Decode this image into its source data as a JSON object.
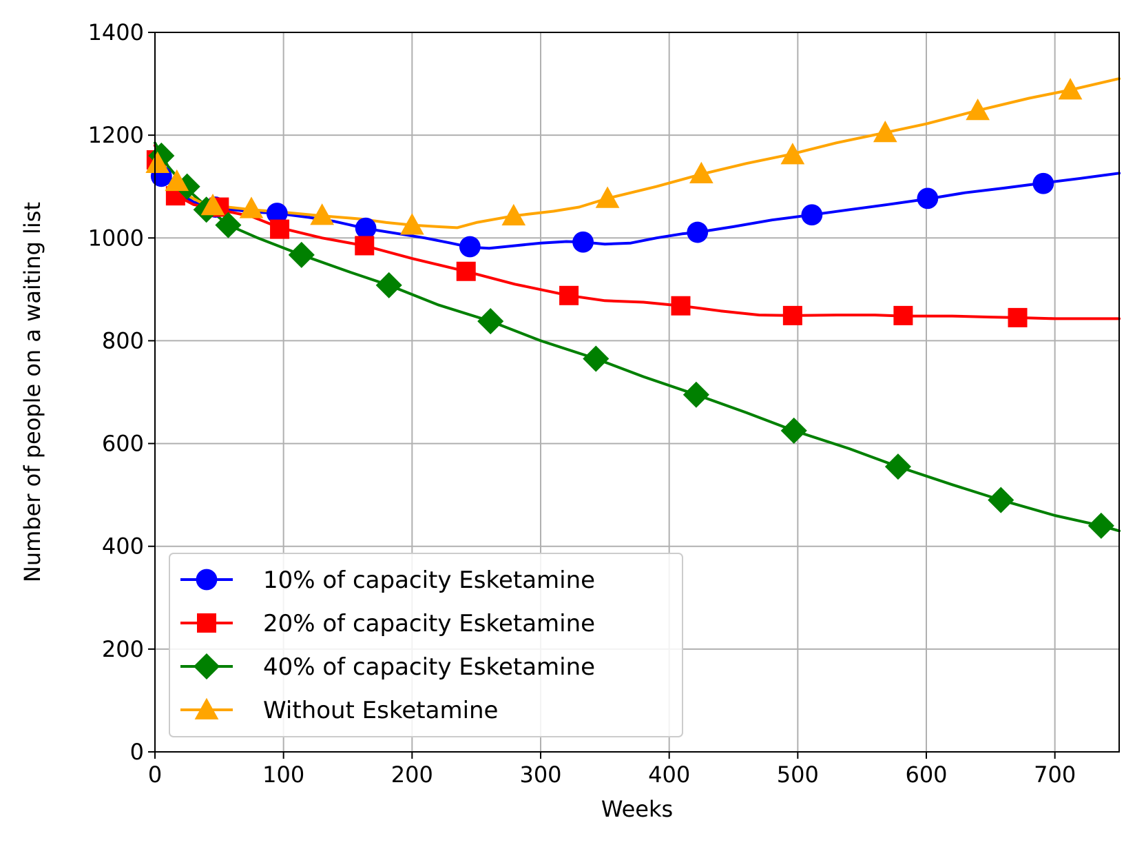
{
  "chart_data": {
    "type": "line",
    "title": "",
    "xlabel": "Weeks",
    "ylabel": "Number of people on a waiting list",
    "xlim": [
      0,
      750
    ],
    "ylim": [
      0,
      1400
    ],
    "x_ticks": [
      0,
      100,
      200,
      300,
      400,
      500,
      600,
      700
    ],
    "y_ticks": [
      0,
      200,
      400,
      600,
      800,
      1000,
      1200,
      1400
    ],
    "grid": true,
    "legend_position": "lower-left",
    "series": [
      {
        "name": "10% of capacity Esketamine",
        "color": "#0000ff",
        "marker": "circle",
        "line": [
          [
            0,
            1180
          ],
          [
            10,
            1125
          ],
          [
            20,
            1085
          ],
          [
            30,
            1070
          ],
          [
            40,
            1062
          ],
          [
            60,
            1055
          ],
          [
            80,
            1050
          ],
          [
            95,
            1048
          ],
          [
            120,
            1040
          ],
          [
            140,
            1032
          ],
          [
            165,
            1018
          ],
          [
            190,
            1008
          ],
          [
            210,
            1000
          ],
          [
            230,
            990
          ],
          [
            245,
            982
          ],
          [
            260,
            980
          ],
          [
            280,
            985
          ],
          [
            300,
            990
          ],
          [
            320,
            993
          ],
          [
            333,
            992
          ],
          [
            350,
            988
          ],
          [
            370,
            990
          ],
          [
            390,
            1000
          ],
          [
            410,
            1008
          ],
          [
            422,
            1011
          ],
          [
            450,
            1022
          ],
          [
            480,
            1035
          ],
          [
            511,
            1045
          ],
          [
            540,
            1055
          ],
          [
            570,
            1065
          ],
          [
            601,
            1076
          ],
          [
            630,
            1088
          ],
          [
            660,
            1097
          ],
          [
            691,
            1107
          ],
          [
            720,
            1116
          ],
          [
            750,
            1126
          ]
        ],
        "markers": [
          [
            5,
            1120
          ],
          [
            47,
            1060
          ],
          [
            95,
            1048
          ],
          [
            164,
            1019
          ],
          [
            245,
            983
          ],
          [
            333,
            992
          ],
          [
            422,
            1011
          ],
          [
            511,
            1045
          ],
          [
            601,
            1077
          ],
          [
            691,
            1106
          ]
        ]
      },
      {
        "name": "20% of capacity Esketamine",
        "color": "#ff0000",
        "marker": "square",
        "line": [
          [
            0,
            1180
          ],
          [
            5,
            1150
          ],
          [
            15,
            1085
          ],
          [
            30,
            1065
          ],
          [
            50,
            1055
          ],
          [
            75,
            1042
          ],
          [
            97,
            1020
          ],
          [
            130,
            1000
          ],
          [
            163,
            985
          ],
          [
            200,
            960
          ],
          [
            242,
            935
          ],
          [
            280,
            910
          ],
          [
            322,
            888
          ],
          [
            350,
            878
          ],
          [
            380,
            875
          ],
          [
            409,
            868
          ],
          [
            440,
            858
          ],
          [
            470,
            850
          ],
          [
            496,
            849
          ],
          [
            530,
            850
          ],
          [
            560,
            850
          ],
          [
            582,
            848
          ],
          [
            620,
            848
          ],
          [
            650,
            846
          ],
          [
            671,
            845
          ],
          [
            700,
            843
          ],
          [
            750,
            843
          ]
        ],
        "markers": [
          [
            1,
            1152
          ],
          [
            16,
            1082
          ],
          [
            50,
            1060
          ],
          [
            97,
            1017
          ],
          [
            163,
            985
          ],
          [
            242,
            935
          ],
          [
            322,
            888
          ],
          [
            409,
            868
          ],
          [
            496,
            849
          ],
          [
            582,
            849
          ],
          [
            671,
            845
          ]
        ]
      },
      {
        "name": "40% of capacity Esketamine",
        "color": "#008000",
        "marker": "diamond",
        "line": [
          [
            0,
            1185
          ],
          [
            10,
            1140
          ],
          [
            25,
            1095
          ],
          [
            45,
            1050
          ],
          [
            57,
            1025
          ],
          [
            80,
            1000
          ],
          [
            114,
            967
          ],
          [
            150,
            935
          ],
          [
            182,
            908
          ],
          [
            220,
            870
          ],
          [
            261,
            838
          ],
          [
            300,
            800
          ],
          [
            343,
            765
          ],
          [
            380,
            730
          ],
          [
            421,
            695
          ],
          [
            460,
            660
          ],
          [
            497,
            625
          ],
          [
            540,
            590
          ],
          [
            578,
            555
          ],
          [
            620,
            520
          ],
          [
            658,
            490
          ],
          [
            700,
            460
          ],
          [
            736,
            440
          ],
          [
            750,
            430
          ]
        ],
        "markers": [
          [
            5,
            1160
          ],
          [
            25,
            1100
          ],
          [
            40,
            1055
          ],
          [
            57,
            1025
          ],
          [
            114,
            967
          ],
          [
            182,
            908
          ],
          [
            261,
            838
          ],
          [
            343,
            765
          ],
          [
            421,
            695
          ],
          [
            497,
            625
          ],
          [
            578,
            555
          ],
          [
            658,
            490
          ],
          [
            736,
            440
          ]
        ]
      },
      {
        "name": "Without Esketamine",
        "color": "#ffa500",
        "marker": "triangle",
        "line": [
          [
            0,
            1150
          ],
          [
            10,
            1115
          ],
          [
            20,
            1090
          ],
          [
            35,
            1070
          ],
          [
            50,
            1062
          ],
          [
            75,
            1055
          ],
          [
            100,
            1050
          ],
          [
            130,
            1043
          ],
          [
            160,
            1037
          ],
          [
            180,
            1030
          ],
          [
            200,
            1025
          ],
          [
            220,
            1022
          ],
          [
            235,
            1020
          ],
          [
            250,
            1030
          ],
          [
            279,
            1043
          ],
          [
            310,
            1052
          ],
          [
            330,
            1060
          ],
          [
            352,
            1077
          ],
          [
            390,
            1100
          ],
          [
            425,
            1124
          ],
          [
            460,
            1145
          ],
          [
            495,
            1163
          ],
          [
            530,
            1185
          ],
          [
            568,
            1205
          ],
          [
            600,
            1222
          ],
          [
            640,
            1248
          ],
          [
            680,
            1272
          ],
          [
            712,
            1288
          ],
          [
            750,
            1310
          ]
        ],
        "markers": [
          [
            2,
            1145
          ],
          [
            17,
            1110
          ],
          [
            45,
            1063
          ],
          [
            75,
            1057
          ],
          [
            130,
            1044
          ],
          [
            200,
            1025
          ],
          [
            279,
            1043
          ],
          [
            352,
            1077
          ],
          [
            425,
            1125
          ],
          [
            496,
            1162
          ],
          [
            568,
            1205
          ],
          [
            640,
            1248
          ],
          [
            712,
            1288
          ]
        ]
      }
    ]
  }
}
